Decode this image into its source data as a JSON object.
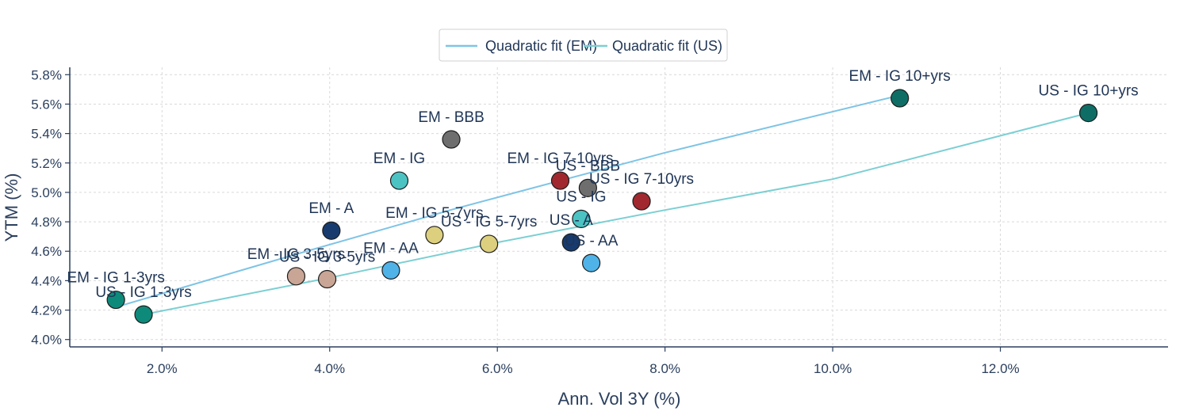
{
  "chart_data": {
    "type": "scatter",
    "xlabel": "Ann. Vol 3Y (%)",
    "ylabel": "YTM (%)",
    "xlim": [
      0.9,
      14.0
    ],
    "ylim": [
      3.95,
      5.85
    ],
    "x_ticks": [
      2.0,
      4.0,
      6.0,
      8.0,
      10.0,
      12.0
    ],
    "x_tick_labels": [
      "2.0%",
      "4.0%",
      "6.0%",
      "8.0%",
      "10.0%",
      "12.0%"
    ],
    "y_ticks": [
      4.0,
      4.2,
      4.4,
      4.6,
      4.8,
      5.0,
      5.2,
      5.4,
      5.6,
      5.8
    ],
    "y_tick_labels": [
      "4.0%",
      "4.2%",
      "4.4%",
      "4.6%",
      "4.8%",
      "5.0%",
      "5.2%",
      "5.4%",
      "5.6%",
      "5.8%"
    ],
    "grid": true,
    "legend_position": "top-center",
    "points": [
      {
        "label": "EM - IG 1-3yrs",
        "x": 1.45,
        "y": 4.27,
        "color": "#0e8a7a"
      },
      {
        "label": "US - IG 1-3yrs",
        "x": 1.78,
        "y": 4.17,
        "color": "#0e8a7a"
      },
      {
        "label": "EM - IG 3-5yrs",
        "x": 3.6,
        "y": 4.43,
        "color": "#c9a595"
      },
      {
        "label": "US - IG 3-5yrs",
        "x": 3.97,
        "y": 4.41,
        "color": "#c9a595"
      },
      {
        "label": "EM - A",
        "x": 4.02,
        "y": 4.74,
        "color": "#173b6e"
      },
      {
        "label": "EM - AA",
        "x": 4.73,
        "y": 4.47,
        "color": "#4fb3e8"
      },
      {
        "label": "EM - IG",
        "x": 4.83,
        "y": 5.08,
        "color": "#4cc3c3"
      },
      {
        "label": "EM - IG 5-7yrs",
        "x": 5.25,
        "y": 4.71,
        "color": "#dccf7e"
      },
      {
        "label": "EM - BBB",
        "x": 5.45,
        "y": 5.36,
        "color": "#6e6e6e"
      },
      {
        "label": "US - IG 5-7yrs",
        "x": 5.9,
        "y": 4.65,
        "color": "#dccf7e"
      },
      {
        "label": "EM - IG 7-10yrs",
        "x": 6.75,
        "y": 5.08,
        "color": "#a1282f"
      },
      {
        "label": "US - A",
        "x": 6.88,
        "y": 4.66,
        "color": "#173b6e"
      },
      {
        "label": "US - IG",
        "x": 7.0,
        "y": 4.82,
        "color": "#4cc3c3"
      },
      {
        "label": "US - BBB",
        "x": 7.08,
        "y": 5.03,
        "color": "#6e6e6e"
      },
      {
        "label": "US - AA",
        "x": 7.12,
        "y": 4.52,
        "color": "#4fb3e8"
      },
      {
        "label": "US - IG 7-10yrs",
        "x": 7.72,
        "y": 4.94,
        "color": "#a1282f"
      },
      {
        "label": "EM - IG 10+yrs",
        "x": 10.8,
        "y": 5.64,
        "color": "#0e6e66"
      },
      {
        "label": "US - IG 10+yrs",
        "x": 13.05,
        "y": 5.54,
        "color": "#0e6e66"
      }
    ],
    "series": [
      {
        "name": "Quadratic fit (EM)",
        "color": "#7ec4e6",
        "x": [
          1.45,
          3.6,
          5.5,
          8.0,
          10.8
        ],
        "y": [
          4.22,
          4.58,
          4.89,
          5.27,
          5.66
        ]
      },
      {
        "name": "Quadratic fit (US)",
        "color": "#7ccfd3",
        "x": [
          1.78,
          4.0,
          6.0,
          8.0,
          10.0,
          13.05
        ],
        "y": [
          4.17,
          4.42,
          4.66,
          4.88,
          5.09,
          5.54
        ]
      }
    ]
  }
}
